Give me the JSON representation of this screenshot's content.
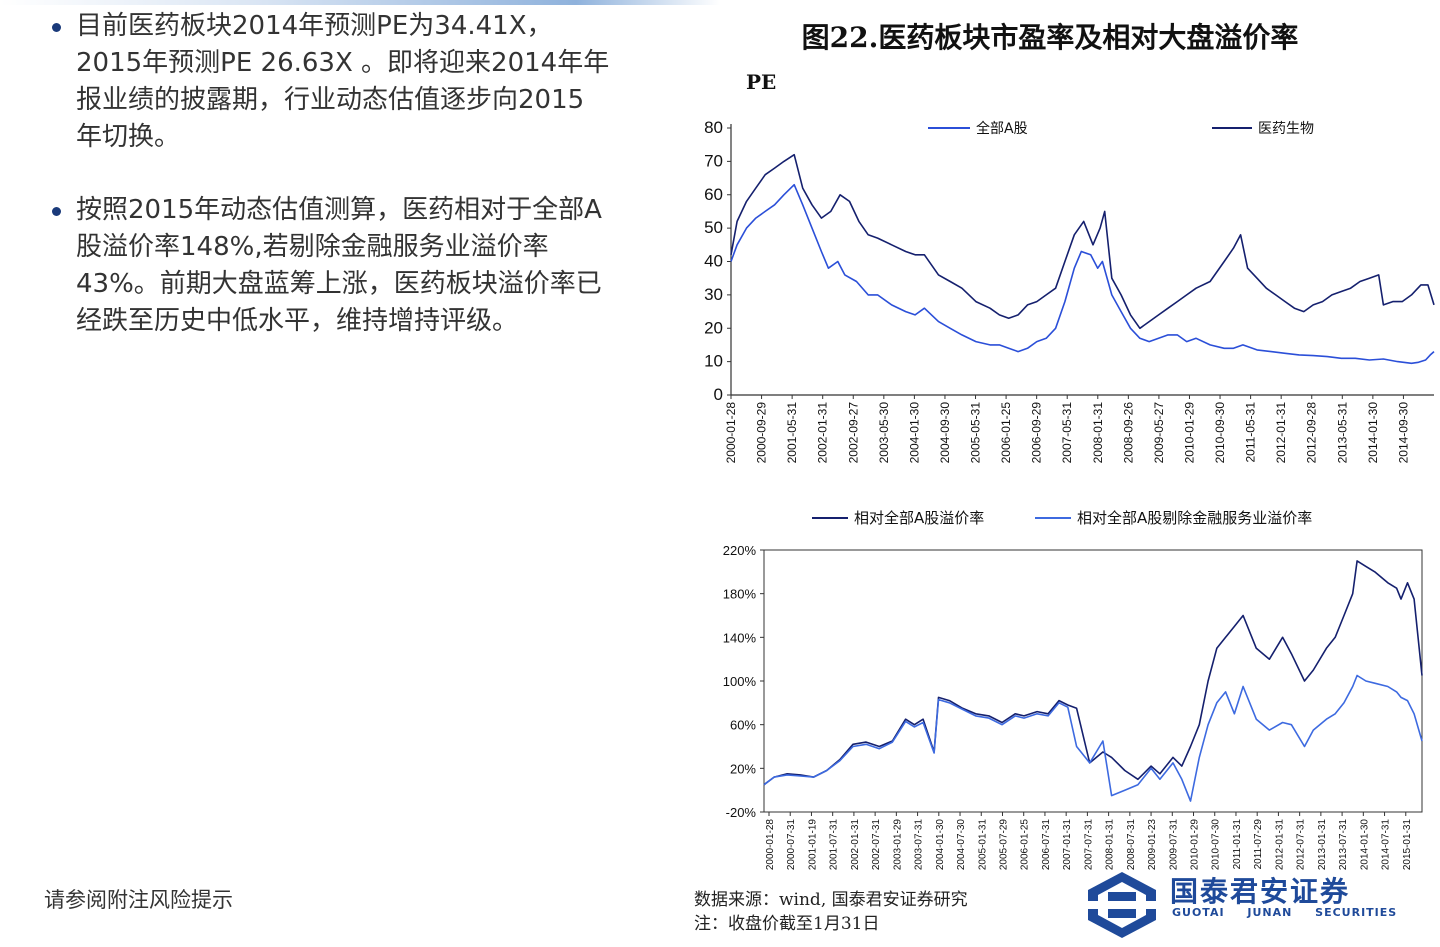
{
  "bullets": [
    {
      "text": "目前医药板块2014年预测PE为34.41X，2015年预测PE 26.63X 。即将迎来2014年年报业绩的披露期，行业动态估值逐步向2015年切换。"
    },
    {
      "text": "按照2015年动态估值测算，医药相对于全部A股溢价率148%,若剔除金融服务业溢价率43%。前期大盘蓝筹上涨，医药板块溢价率已经跌至历史中低水平，维持增持评级。"
    }
  ],
  "footer_note": "请参阅附注风险提示",
  "source": {
    "line1": "数据来源：wind, 国泰君安证券研究",
    "line2": "注：收盘价截至1月31日"
  },
  "logo": {
    "name": "国泰君安证券",
    "sub": "GUOTAI JUNAN SECURITIES"
  },
  "figure_title": "图22.医药板块市盈率及相对大盘溢价率",
  "colors": {
    "accent": "#1f4a9a",
    "series_dark": "#1c2a7a",
    "series_light": "#3d6ae0"
  },
  "chart_data": [
    {
      "type": "line",
      "ylabel": "PE",
      "ylim": [
        0,
        80
      ],
      "yticks": [
        0,
        10,
        20,
        30,
        40,
        50,
        60,
        70,
        80
      ],
      "xlim": [
        2000.07,
        2015.08
      ],
      "xtick_labels": [
        "2000-01-28",
        "2000-09-29",
        "2001-05-31",
        "2002-01-31",
        "2002-09-27",
        "2003-05-30",
        "2004-01-30",
        "2004-09-30",
        "2005-05-31",
        "2006-01-25",
        "2006-09-29",
        "2007-05-31",
        "2008-01-31",
        "2008-09-26",
        "2009-05-27",
        "2010-01-29",
        "2010-09-30",
        "2011-05-31",
        "2012-01-31",
        "2012-09-28",
        "2013-05-31",
        "2014-01-30",
        "2014-09-30"
      ],
      "series": [
        {
          "name": "全部A股",
          "color": "#2b4fd8",
          "x": [
            2000.07,
            2000.2,
            2000.4,
            2000.6,
            2000.8,
            2001.0,
            2001.2,
            2001.42,
            2001.6,
            2001.8,
            2002.0,
            2002.15,
            2002.35,
            2002.5,
            2002.75,
            2003.0,
            2003.2,
            2003.5,
            2003.8,
            2004.0,
            2004.2,
            2004.5,
            2004.75,
            2005.0,
            2005.3,
            2005.6,
            2005.8,
            2006.0,
            2006.2,
            2006.4,
            2006.6,
            2006.8,
            2007.0,
            2007.2,
            2007.4,
            2007.55,
            2007.75,
            2007.9,
            2008.0,
            2008.2,
            2008.4,
            2008.6,
            2008.8,
            2009.0,
            2009.2,
            2009.4,
            2009.6,
            2009.8,
            2010.0,
            2010.3,
            2010.6,
            2010.8,
            2011.0,
            2011.3,
            2011.6,
            2011.9,
            2012.2,
            2012.5,
            2012.8,
            2013.1,
            2013.4,
            2013.7,
            2014.0,
            2014.3,
            2014.6,
            2014.75,
            2014.9,
            2015.0,
            2015.08
          ],
          "y": [
            40,
            45,
            50,
            53,
            55,
            57,
            60,
            63,
            57,
            50,
            43,
            38,
            40,
            36,
            34,
            30,
            30,
            27,
            25,
            24,
            26,
            22,
            20,
            18,
            16,
            15,
            15,
            14,
            13,
            14,
            16,
            17,
            20,
            28,
            38,
            43,
            42,
            38,
            40,
            30,
            25,
            20,
            17,
            16,
            17,
            18,
            18,
            16,
            17,
            15,
            14,
            14,
            15,
            13.5,
            13,
            12.5,
            12,
            11.8,
            11.5,
            11,
            11,
            10.5,
            10.8,
            10,
            9.5,
            9.8,
            10.5,
            12,
            13
          ]
        },
        {
          "name": "医药生物",
          "color": "#15206e",
          "x": [
            2000.07,
            2000.2,
            2000.4,
            2000.6,
            2000.8,
            2001.0,
            2001.2,
            2001.42,
            2001.6,
            2001.8,
            2002.0,
            2002.2,
            2002.4,
            2002.6,
            2002.8,
            2003.0,
            2003.2,
            2003.5,
            2003.8,
            2004.0,
            2004.2,
            2004.5,
            2004.75,
            2005.0,
            2005.3,
            2005.6,
            2005.8,
            2006.0,
            2006.2,
            2006.4,
            2006.6,
            2006.8,
            2007.0,
            2007.2,
            2007.4,
            2007.6,
            2007.8,
            2007.95,
            2008.05,
            2008.2,
            2008.4,
            2008.6,
            2008.8,
            2009.0,
            2009.2,
            2009.4,
            2009.6,
            2009.8,
            2010.0,
            2010.3,
            2010.6,
            2010.8,
            2010.95,
            2011.1,
            2011.3,
            2011.5,
            2011.7,
            2011.9,
            2012.1,
            2012.3,
            2012.5,
            2012.7,
            2012.9,
            2013.1,
            2013.3,
            2013.5,
            2013.7,
            2013.9,
            2014.0,
            2014.2,
            2014.4,
            2014.6,
            2014.8,
            2014.95,
            2015.08
          ],
          "y": [
            42,
            52,
            58,
            62,
            66,
            68,
            70,
            72,
            62,
            57,
            53,
            55,
            60,
            58,
            52,
            48,
            47,
            45,
            43,
            42,
            42,
            36,
            34,
            32,
            28,
            26,
            24,
            23,
            24,
            27,
            28,
            30,
            32,
            40,
            48,
            52,
            45,
            50,
            55,
            35,
            30,
            24,
            20,
            22,
            24,
            26,
            28,
            30,
            32,
            34,
            40,
            44,
            48,
            38,
            35,
            32,
            30,
            28,
            26,
            25,
            27,
            28,
            30,
            31,
            32,
            34,
            35,
            36,
            27,
            28,
            28,
            30,
            33,
            33,
            27
          ]
        }
      ]
    },
    {
      "type": "line",
      "ylim": [
        -20,
        220
      ],
      "yticks": [
        -20,
        20,
        60,
        100,
        140,
        180,
        220
      ],
      "ytick_labels": [
        "-20%",
        "20%",
        "60%",
        "100%",
        "140%",
        "180%",
        "220%"
      ],
      "xlim": [
        2000.07,
        2015.08
      ],
      "xtick_labels": [
        "2000-01-28",
        "2000-07-31",
        "2001-01-19",
        "2001-07-31",
        "2002-01-31",
        "2002-07-31",
        "2003-01-29",
        "2003-07-31",
        "2004-01-30",
        "2004-07-30",
        "2005-01-31",
        "2005-07-29",
        "2006-01-25",
        "2006-07-31",
        "2007-01-31",
        "2007-07-31",
        "2008-01-31",
        "2008-07-31",
        "2009-01-23",
        "2009-07-31",
        "2010-01-29",
        "2010-07-30",
        "2011-01-31",
        "2011-07-29",
        "2012-01-31",
        "2012-07-31",
        "2013-01-31",
        "2013-07-31",
        "2014-01-30",
        "2014-07-31",
        "2015-01-31"
      ],
      "series": [
        {
          "name": "相对全部A股溢价率",
          "color": "#15206e",
          "x": [
            2000.07,
            2000.3,
            2000.6,
            2000.9,
            2001.2,
            2001.5,
            2001.8,
            2002.1,
            2002.4,
            2002.7,
            2003.0,
            2003.3,
            2003.5,
            2003.7,
            2003.95,
            2004.05,
            2004.3,
            2004.6,
            2004.9,
            2005.2,
            2005.5,
            2005.8,
            2006.0,
            2006.3,
            2006.55,
            2006.8,
            2007.0,
            2007.2,
            2007.5,
            2007.8,
            2008.0,
            2008.3,
            2008.6,
            2008.9,
            2009.1,
            2009.4,
            2009.6,
            2009.8,
            2010.0,
            2010.2,
            2010.4,
            2010.6,
            2010.8,
            2011.0,
            2011.3,
            2011.6,
            2011.9,
            2012.1,
            2012.4,
            2012.6,
            2012.9,
            2013.1,
            2013.3,
            2013.5,
            2013.6,
            2013.8,
            2014.0,
            2014.3,
            2014.5,
            2014.6,
            2014.75,
            2014.9,
            2015.08
          ],
          "y": [
            5,
            12,
            15,
            14,
            12,
            18,
            28,
            42,
            44,
            40,
            45,
            65,
            60,
            65,
            35,
            85,
            82,
            75,
            70,
            68,
            62,
            70,
            68,
            72,
            70,
            82,
            78,
            75,
            25,
            35,
            30,
            18,
            10,
            22,
            15,
            30,
            22,
            40,
            60,
            100,
            130,
            140,
            150,
            160,
            130,
            120,
            140,
            125,
            100,
            110,
            130,
            140,
            160,
            180,
            210,
            205,
            200,
            190,
            185,
            175,
            190,
            175,
            105
          ]
        },
        {
          "name": "相对全部A股剔除金融服务业溢价率",
          "color": "#3d6ae0",
          "x": [
            2000.07,
            2000.3,
            2000.6,
            2000.9,
            2001.2,
            2001.5,
            2001.8,
            2002.1,
            2002.4,
            2002.7,
            2003.0,
            2003.3,
            2003.5,
            2003.7,
            2003.95,
            2004.05,
            2004.3,
            2004.6,
            2004.9,
            2005.2,
            2005.5,
            2005.8,
            2006.0,
            2006.3,
            2006.55,
            2006.8,
            2007.0,
            2007.2,
            2007.5,
            2007.8,
            2008.0,
            2008.3,
            2008.6,
            2008.9,
            2009.1,
            2009.4,
            2009.6,
            2009.8,
            2010.0,
            2010.2,
            2010.4,
            2010.6,
            2010.8,
            2011.0,
            2011.3,
            2011.6,
            2011.9,
            2012.1,
            2012.4,
            2012.6,
            2012.9,
            2013.1,
            2013.3,
            2013.5,
            2013.6,
            2013.8,
            2014.0,
            2014.3,
            2014.5,
            2014.6,
            2014.75,
            2014.9,
            2015.08
          ],
          "y": [
            5,
            12,
            14,
            13,
            12,
            18,
            27,
            40,
            42,
            38,
            44,
            63,
            58,
            62,
            34,
            83,
            80,
            74,
            68,
            66,
            60,
            68,
            66,
            70,
            68,
            80,
            76,
            40,
            25,
            45,
            -5,
            0,
            5,
            20,
            10,
            25,
            10,
            -10,
            30,
            60,
            80,
            90,
            70,
            95,
            65,
            55,
            62,
            60,
            40,
            55,
            65,
            70,
            80,
            95,
            105,
            100,
            98,
            95,
            90,
            85,
            82,
            70,
            45
          ]
        }
      ]
    }
  ]
}
